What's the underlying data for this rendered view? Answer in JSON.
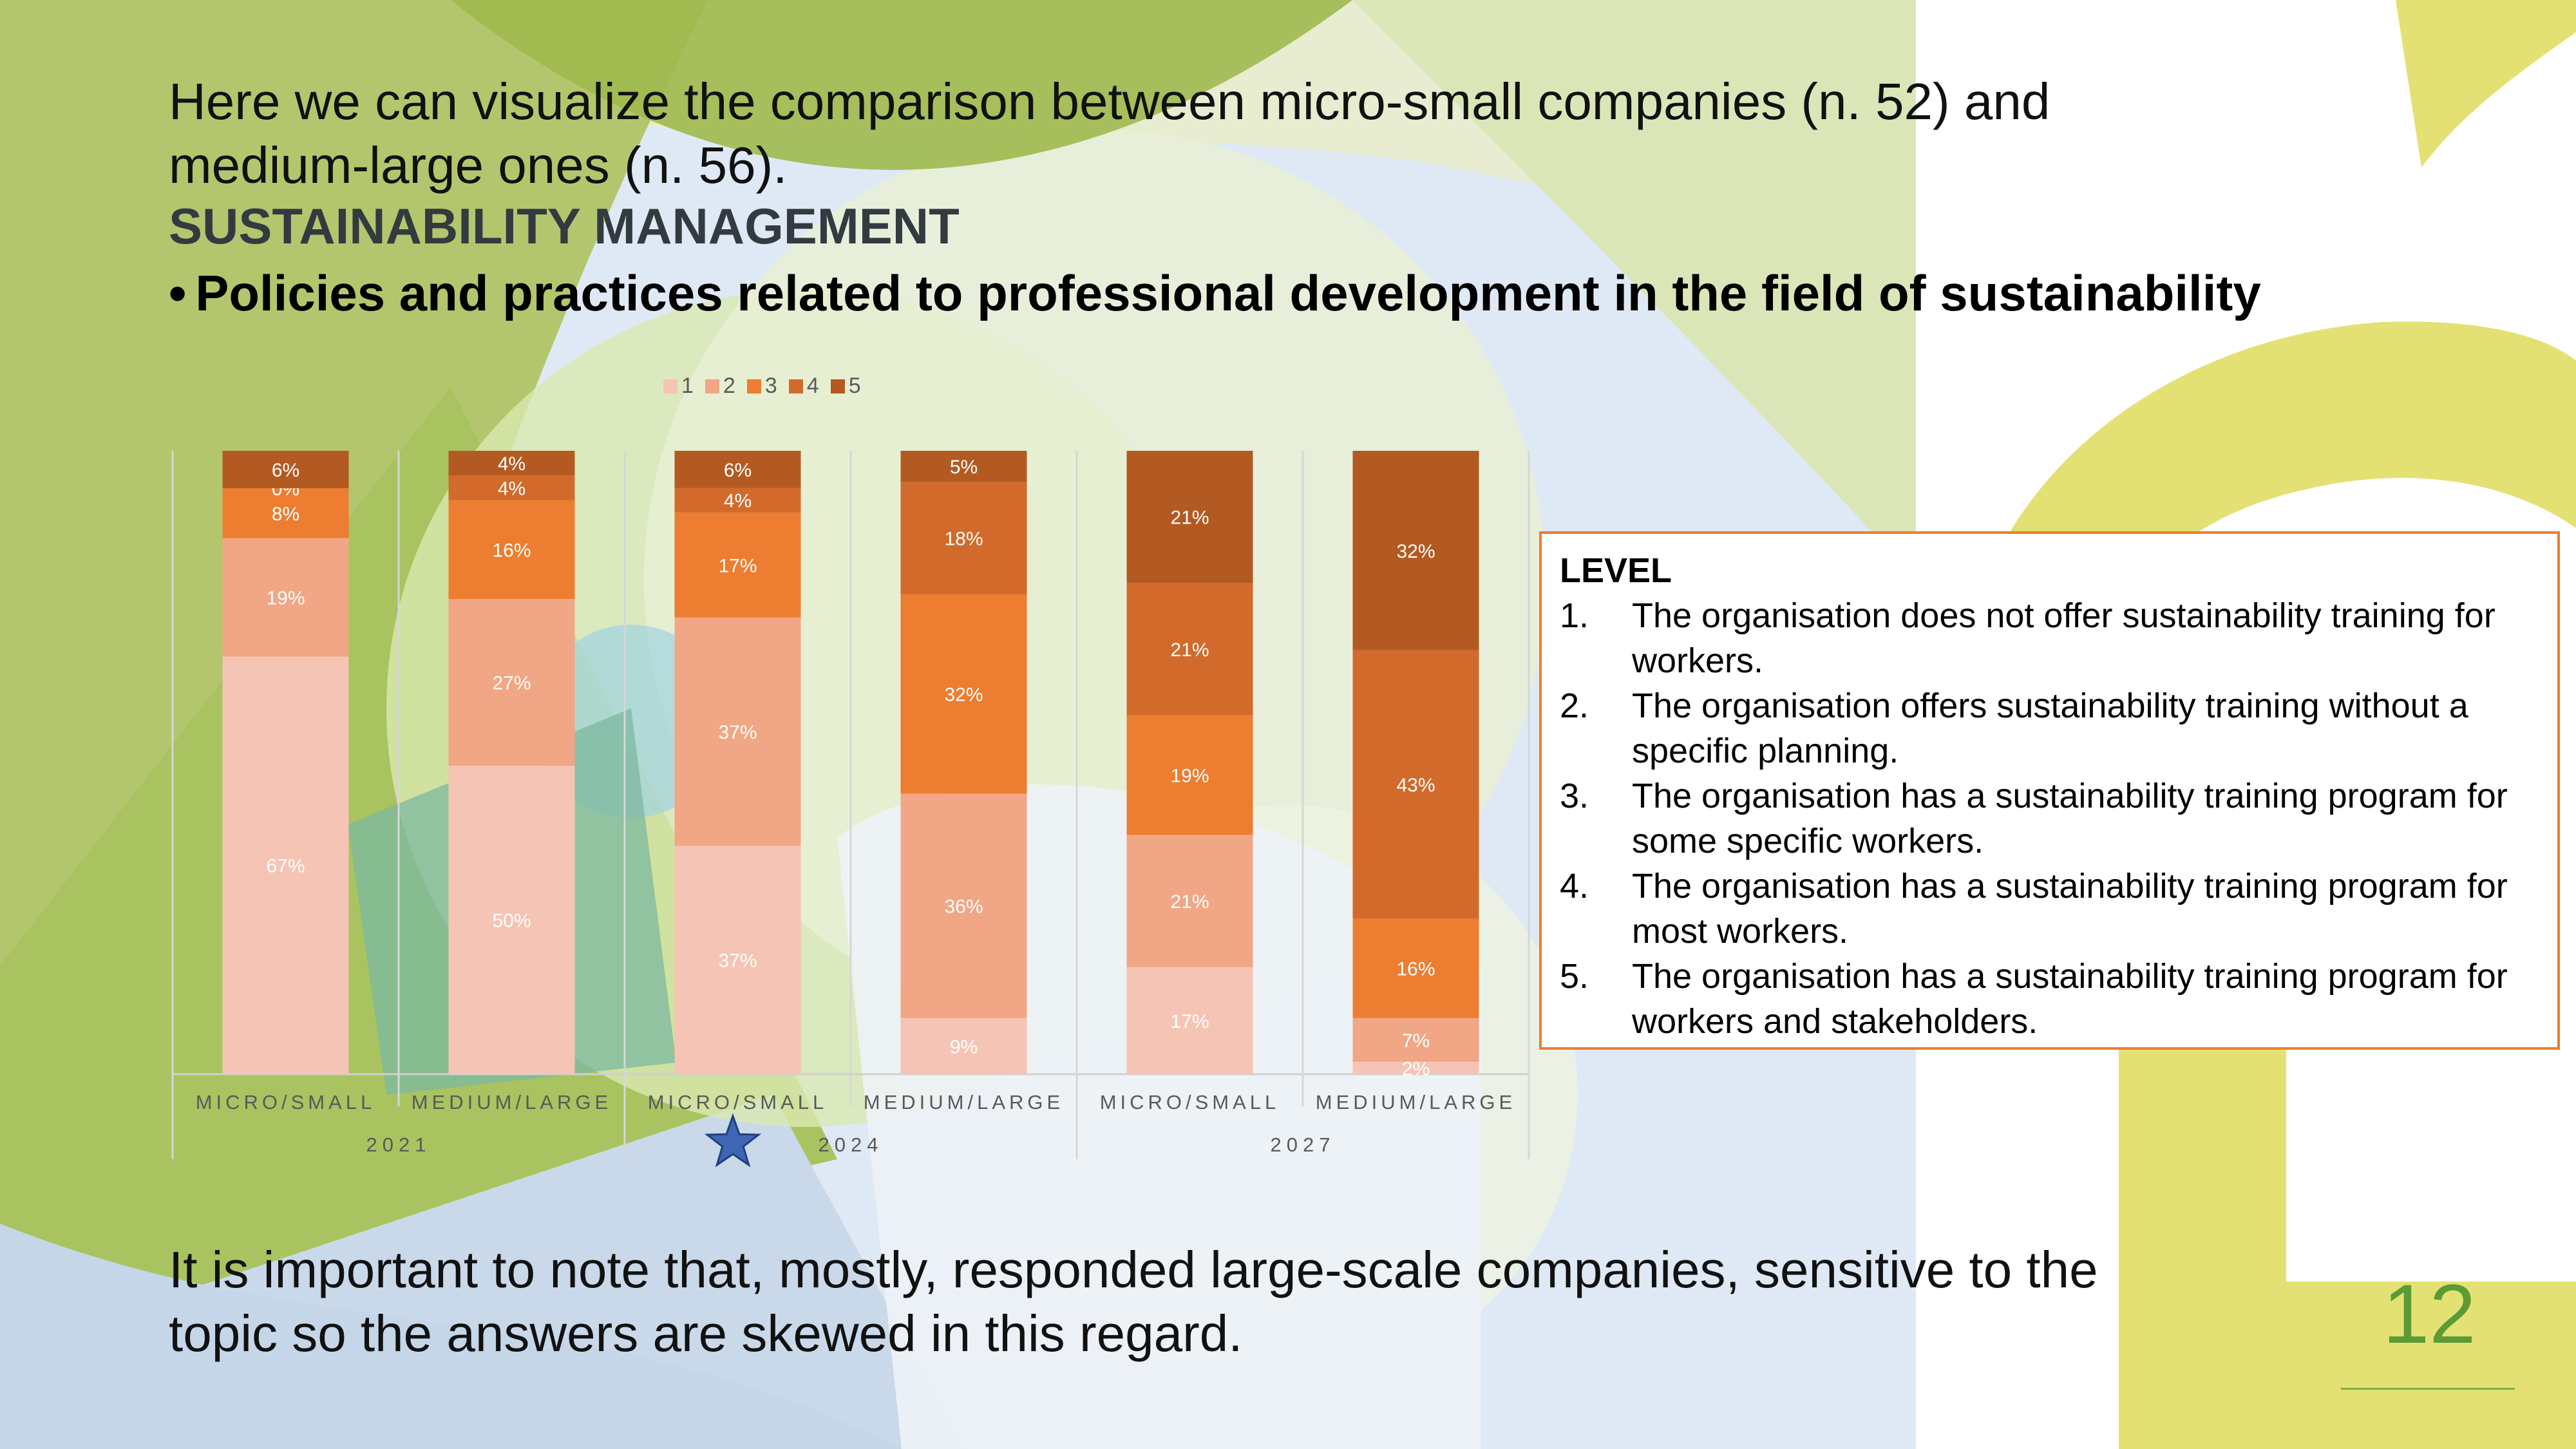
{
  "slide": {
    "intro": "Here we can visualize the comparison between micro-small companies (n. 52) and medium-large ones (n. 56).",
    "section_title": "SUSTAINABILITY MANAGEMENT",
    "bullet_symbol": "•",
    "bullet_text": "Policies and practices related to professional development in the field of sustainability",
    "note": "It is important to note that, mostly, responded large-scale companies, sensitive to the topic so the answers are skewed in this regard.",
    "page_number": "12",
    "star_icon": "star-icon"
  },
  "level_box": {
    "title": "LEVEL",
    "items": [
      {
        "num": "1.",
        "text": "The organisation does not offer sustainability training for workers."
      },
      {
        "num": "2.",
        "text": "The organisation offers sustainability training without a specific planning."
      },
      {
        "num": "3.",
        "text": "The organisation has a sustainability training program for some specific workers."
      },
      {
        "num": "4.",
        "text": "The organisation has a sustainability training program for most  workers."
      },
      {
        "num": "5.",
        "text": "The organisation has a sustainability training program for workers and stakeholders."
      }
    ]
  },
  "chart_data": {
    "type": "bar",
    "stacked": true,
    "percent": true,
    "categories": [
      "MICRO/SMALL",
      "MEDIUM/LARGE",
      "MICRO/SMALL",
      "MEDIUM/LARGE",
      "MICRO/SMALL",
      "MEDIUM/LARGE"
    ],
    "groups": [
      {
        "label": "2021",
        "categories": [
          0,
          1
        ]
      },
      {
        "label": "2024",
        "categories": [
          2,
          3
        ]
      },
      {
        "label": "2027",
        "categories": [
          4,
          5
        ]
      }
    ],
    "series": [
      {
        "name": "1",
        "color": "#f6c4b4",
        "values": [
          67,
          50,
          37,
          9,
          17,
          2
        ]
      },
      {
        "name": "2",
        "color": "#f1a685",
        "values": [
          19,
          27,
          37,
          36,
          21,
          7
        ]
      },
      {
        "name": "3",
        "color": "#ed7d31",
        "values": [
          8,
          16,
          17,
          32,
          19,
          16
        ]
      },
      {
        "name": "4",
        "color": "#d26a2c",
        "values": [
          0,
          4,
          4,
          18,
          21,
          43
        ]
      },
      {
        "name": "5",
        "color": "#b35a22",
        "values": [
          6,
          4,
          6,
          5,
          21,
          32
        ]
      }
    ],
    "legend_position": "top",
    "grid": false
  }
}
